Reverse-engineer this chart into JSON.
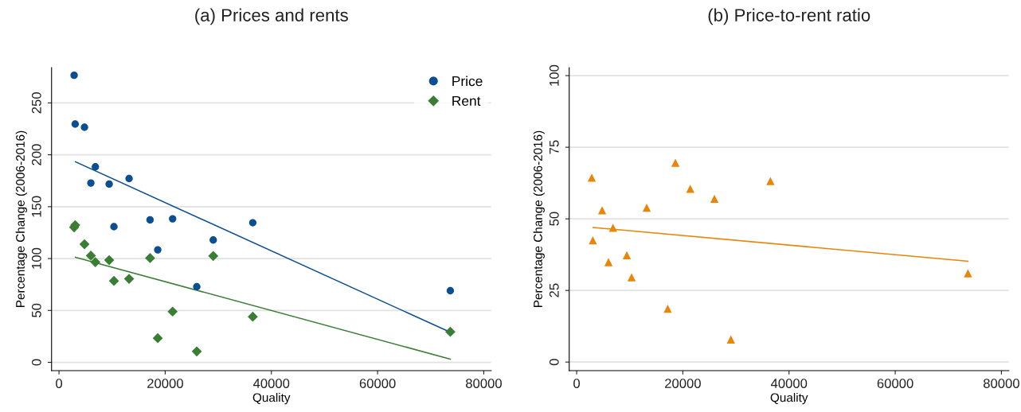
{
  "chart_data": [
    {
      "type": "scatter",
      "title": "(a) Prices and rents",
      "xlabel": "Quality",
      "ylabel": "Percentage Change (2006-2016)",
      "xlim": [
        -1400,
        81400
      ],
      "ylim": [
        -8,
        284
      ],
      "xticks": [
        0,
        20000,
        40000,
        60000,
        80000
      ],
      "yticks": [
        0,
        50,
        100,
        150,
        200,
        250
      ],
      "grid": "y",
      "legend": "top right",
      "series": [
        {
          "name": "Price",
          "color": "#0b4f92",
          "marker": "circle",
          "x": [
            2850,
            3050,
            4800,
            6850,
            6000,
            9450,
            13200,
            10350,
            17150,
            21400,
            18600,
            25950,
            29050,
            36500,
            73700
          ],
          "values": [
            276.6,
            229.6,
            226.5,
            188.4,
            172.8,
            171.8,
            177.1,
            130.7,
            137.3,
            138.3,
            108.4,
            72.9,
            117.9,
            134.5,
            69.0
          ]
        },
        {
          "name": "Rent",
          "color": "#3a7d35",
          "marker": "diamond",
          "x": [
            2850,
            3050,
            4800,
            6000,
            6850,
            9450,
            10350,
            13200,
            17150,
            21400,
            18600,
            25950,
            29050,
            36500,
            73700
          ],
          "values": [
            130.1,
            132.2,
            113.8,
            102.8,
            96.6,
            98.5,
            78.5,
            80.5,
            100.5,
            48.9,
            23.3,
            10.5,
            102.5,
            44.0,
            29.4
          ]
        },
        {
          "type": "line",
          "color": "#0b4f92",
          "x": [
            3100,
            73700
          ],
          "values": [
            193.2,
            29.0
          ]
        },
        {
          "type": "line",
          "color": "#3a7d35",
          "x": [
            3100,
            73700
          ],
          "values": [
            101.2,
            3.1
          ]
        }
      ]
    },
    {
      "type": "scatter",
      "title": "(b) Price-to-rent ratio",
      "xlabel": "Quality",
      "ylabel": "Percentage Change (2006-2016)",
      "xlim": [
        -1400,
        81400
      ],
      "ylim": [
        -3,
        102.8
      ],
      "xticks": [
        0,
        20000,
        40000,
        60000,
        80000
      ],
      "yticks": [
        0,
        25,
        50,
        75,
        100
      ],
      "grid": "y",
      "series": [
        {
          "color": "#e8850a",
          "marker": "triangle",
          "x": [
            2850,
            3050,
            4800,
            6000,
            6850,
            9450,
            10350,
            13200,
            17150,
            18600,
            21400,
            25950,
            29050,
            36500,
            73700
          ],
          "values": [
            64.4,
            42.5,
            53.0,
            34.9,
            46.9,
            37.3,
            29.6,
            53.9,
            18.6,
            69.6,
            60.5,
            57.0,
            7.9,
            63.2,
            31.0
          ]
        },
        {
          "type": "line",
          "color": "#e8850a",
          "x": [
            3100,
            73700
          ],
          "values": [
            47.0,
            35.2
          ]
        }
      ]
    }
  ]
}
